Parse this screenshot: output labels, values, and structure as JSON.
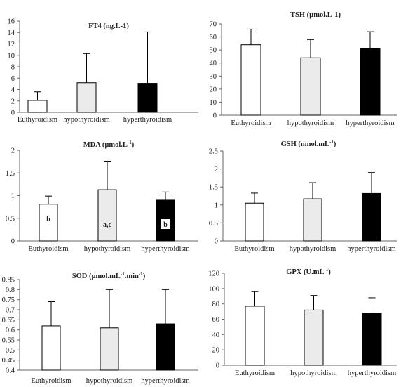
{
  "colors": {
    "eu": "#ffffff",
    "hypo": "#ebebeb",
    "hyper": "#000000",
    "border": "#000000"
  },
  "chart_data": [
    {
      "type": "bar",
      "title": "FT4 (ng.L-1)",
      "categories": [
        "Euthyroidism",
        "hypothyroidism",
        "hyperthyroidism"
      ],
      "values": [
        2.1,
        5.2,
        5.1
      ],
      "error_upper": [
        3.6,
        10.3,
        14.1
      ],
      "ylim": [
        0,
        16
      ],
      "yticks": [
        "0",
        "2",
        "4",
        "6",
        "8",
        "10",
        "12",
        "14",
        "16"
      ],
      "labels": [
        "",
        "",
        ""
      ]
    },
    {
      "type": "bar",
      "title": "TSH (µmol.L-1)",
      "categories": [
        "Euthyroidism",
        "hypothyroidism",
        "hyperthyroidism"
      ],
      "values": [
        54,
        44,
        51
      ],
      "error_upper": [
        66,
        58,
        64
      ],
      "ylim": [
        0,
        70
      ],
      "yticks": [
        "0",
        "10",
        "20",
        "30",
        "40",
        "50",
        "60",
        "70"
      ],
      "labels": [
        "",
        "",
        ""
      ]
    },
    {
      "type": "bar",
      "title": "MDA (µmol.L",
      "title_sup": "-1",
      "title_end": ")",
      "categories": [
        "Euthyroidism",
        "hypothyroidism",
        "hyperthyroidism"
      ],
      "values": [
        0.81,
        1.13,
        0.9
      ],
      "error_upper": [
        0.99,
        1.76,
        1.08
      ],
      "ylim": [
        0,
        2
      ],
      "yticks": [
        "0",
        "0.5",
        "1",
        "1.5",
        "2"
      ],
      "labels": [
        "b",
        "a,c",
        "b"
      ]
    },
    {
      "type": "bar",
      "title": "GSH (nmol.mL",
      "title_sup": "-1",
      "title_end": ")",
      "categories": [
        "Euthyroidism",
        "hypothyroidism",
        "hyperthyroidism"
      ],
      "values": [
        1.05,
        1.17,
        1.32
      ],
      "error_upper": [
        1.33,
        1.62,
        1.9
      ],
      "ylim": [
        0,
        2.5
      ],
      "yticks": [
        "0",
        "0.5",
        "1",
        "1.5",
        "2",
        "2.5"
      ],
      "labels": [
        "",
        "",
        ""
      ]
    },
    {
      "type": "bar",
      "title": "SOD (µmol.mL",
      "title_sup": "-1",
      "title_mid": ".min",
      "title_sup2": "-1",
      "title_end": ")",
      "categories": [
        "Euthyroidism",
        "hypothyroidism",
        "hyperthyroidism"
      ],
      "values": [
        0.62,
        0.61,
        0.63
      ],
      "error_upper": [
        0.74,
        0.8,
        0.8
      ],
      "ylim": [
        0.4,
        0.85
      ],
      "yticks": [
        "0.4",
        "0.45",
        "0.5",
        "0.55",
        "0.6",
        "0.65",
        "0.7",
        "0.75",
        "0.8",
        "0.85"
      ],
      "labels": [
        "",
        "",
        ""
      ]
    },
    {
      "type": "bar",
      "title": "GPX (U.mL",
      "title_sup": "-1",
      "title_end": ")",
      "categories": [
        "Euthyroidism",
        "hypothyroidism",
        "hyperthyroidism"
      ],
      "values": [
        77,
        72,
        68
      ],
      "error_upper": [
        96,
        91,
        88
      ],
      "ylim": [
        0,
        120
      ],
      "yticks": [
        "0",
        "20",
        "40",
        "60",
        "80",
        "100",
        "120"
      ],
      "labels": [
        "",
        "",
        ""
      ]
    }
  ]
}
